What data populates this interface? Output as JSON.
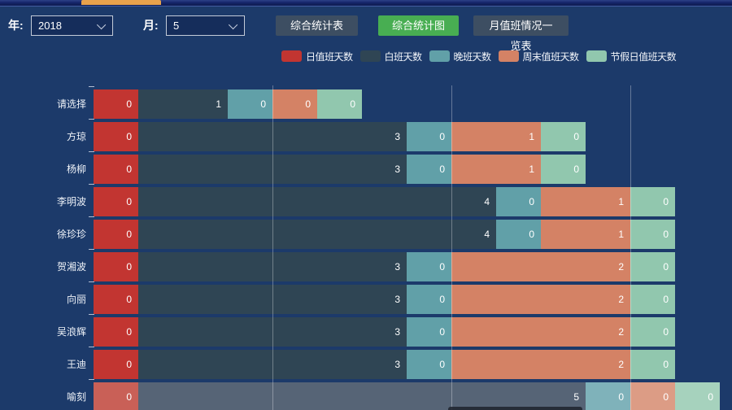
{
  "window": {
    "background": "#1c3a6a"
  },
  "top_bar": {
    "active_tab_color": "#e8a24c"
  },
  "toolbar": {
    "year_label": "年:",
    "year_value": "2018",
    "month_label": "月:",
    "month_value": "5",
    "buttons": [
      {
        "label": "综合统计表",
        "active": false
      },
      {
        "label": "综合统计图",
        "active": true
      },
      {
        "label": "月值班情况一览表",
        "active": false
      }
    ]
  },
  "chart_data": {
    "type": "bar",
    "orientation": "horizontal",
    "stacked": true,
    "legend_position": "top",
    "categories": [
      "请选择",
      "方琼",
      "杨柳",
      "李明波",
      "徐珍珍",
      "贺湘波",
      "向丽",
      "吴浪辉",
      "王迪",
      "喻刻"
    ],
    "series": [
      {
        "name": "日值班天数",
        "color": "#c23531",
        "values": [
          0,
          0,
          0,
          0,
          0,
          0,
          0,
          0,
          0,
          0
        ]
      },
      {
        "name": "白班天数",
        "color": "#2f4554",
        "values": [
          1,
          3,
          3,
          4,
          4,
          3,
          3,
          3,
          3,
          5
        ]
      },
      {
        "name": "晚班天数",
        "color": "#61a0a8",
        "values": [
          0,
          0,
          0,
          0,
          0,
          0,
          0,
          0,
          0,
          0
        ]
      },
      {
        "name": "周末值班天数",
        "color": "#d48265",
        "values": [
          0,
          1,
          1,
          1,
          1,
          2,
          2,
          2,
          2,
          0
        ]
      },
      {
        "name": "节假日值班天数",
        "color": "#91c7ae",
        "values": [
          0,
          0,
          0,
          0,
          0,
          0,
          0,
          0,
          0,
          0
        ]
      }
    ],
    "xlim": [
      0,
      7
    ],
    "gridline_values": [
      2,
      4,
      6
    ],
    "zero_value_min_units": 0.5,
    "grid_on": true,
    "highlighted_category": "喻刻",
    "highlight_colors": [
      "#c96057",
      "#566476",
      "#7fb2ba",
      "#dc9c85",
      "#a6d2bd"
    ]
  }
}
